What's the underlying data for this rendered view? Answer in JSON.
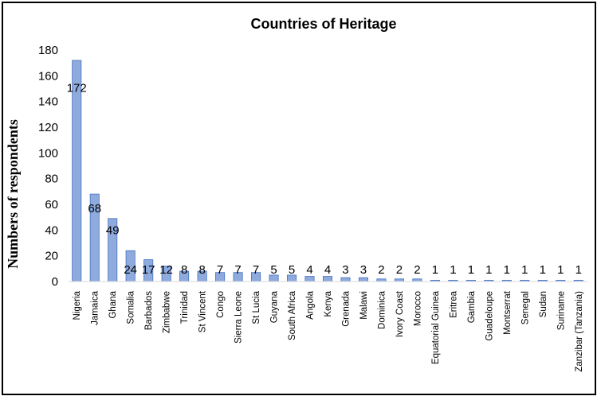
{
  "chart_data": {
    "type": "bar",
    "title": "Countries of Heritage",
    "xlabel": "",
    "ylabel": "Numbers of respondents",
    "ylim": [
      0,
      180
    ],
    "yticks": [
      0,
      20,
      40,
      60,
      80,
      100,
      120,
      140,
      160,
      180
    ],
    "grid": false,
    "legend": "none",
    "bar_color": "#8faadc",
    "bar_edge": "#4472c4",
    "categories": [
      "Nigeria",
      "Jamaica",
      "Ghana",
      "Somalia",
      "Barbados",
      "Zimbabwe",
      "Trinidad",
      "St Vincent",
      "Congo",
      "Sierra Leone",
      "St Lucia",
      "Guyana",
      "South Africa",
      "Angola",
      "Kenya",
      "Grenada",
      "Malawi",
      "Dominica",
      "Ivory Coast",
      "Morocco",
      "Equatorial Guinea",
      "Eritrea",
      "Gambia",
      "Guadeloupe",
      "Montserrat",
      "Senegal",
      "Sudan",
      "Suriname",
      "Zanzibar (Tanzania)"
    ],
    "values": [
      172,
      68,
      49,
      24,
      17,
      12,
      8,
      8,
      7,
      7,
      7,
      5,
      5,
      4,
      4,
      3,
      3,
      2,
      2,
      2,
      1,
      1,
      1,
      1,
      1,
      1,
      1,
      1,
      1
    ]
  }
}
